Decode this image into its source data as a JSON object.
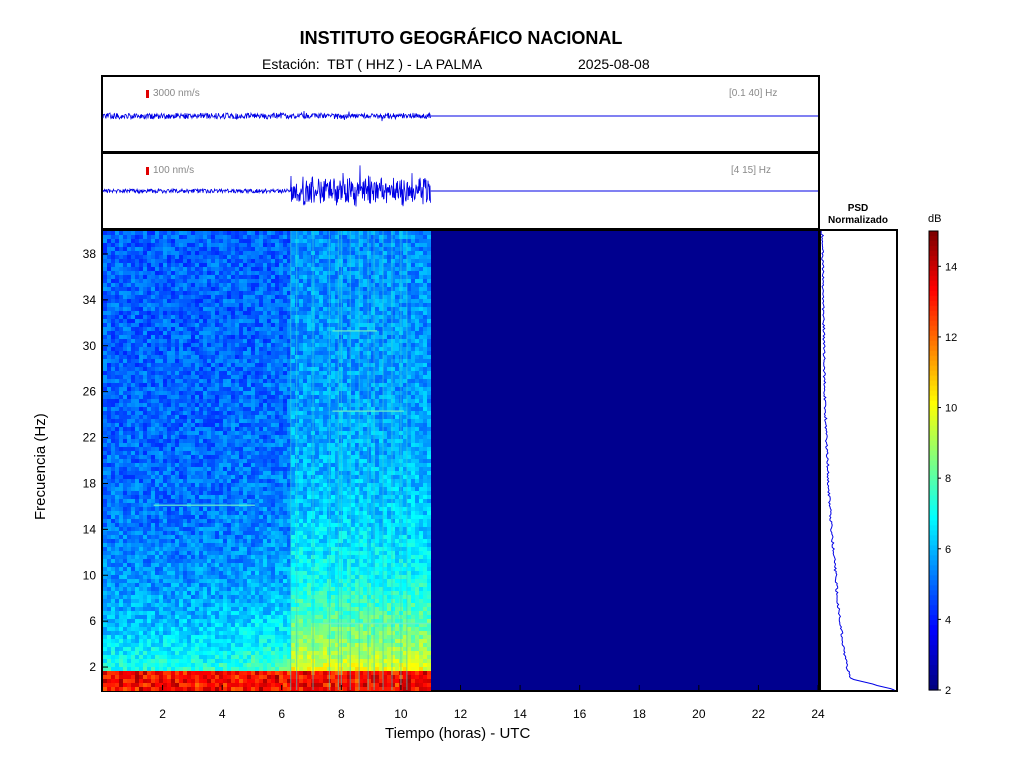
{
  "header": {
    "title": "INSTITUTO GEOGRÁFICO NACIONAL",
    "station": "Estación:  TBT ( HHZ ) - LA PALMA",
    "date": "2025-08-08"
  },
  "trace_top": {
    "scale": "3000 nm/s",
    "band": "[0.1 40] Hz"
  },
  "trace_bottom": {
    "scale": "100 nm/s",
    "band": "[4 15] Hz"
  },
  "psd": {
    "title_line1": "PSD",
    "title_line2": "Normalizado"
  },
  "colorbar": {
    "unit": "dB",
    "ticks": [
      2,
      4,
      6,
      8,
      10,
      12,
      14
    ],
    "range": [
      2,
      15
    ]
  },
  "colors": {
    "trace": "#0000e6",
    "background_spectrogram": "#00008f",
    "scale_bar": "#e00000"
  },
  "chart_data": {
    "type": "heatmap",
    "xlabel": "Tiempo (horas) - UTC",
    "ylabel": "Frecuencia  (Hz)",
    "xlim": [
      0,
      24
    ],
    "ylim": [
      0,
      40
    ],
    "xticks": [
      2,
      4,
      6,
      8,
      10,
      12,
      14,
      16,
      18,
      20,
      22,
      24
    ],
    "yticks": [
      2,
      6,
      10,
      14,
      18,
      22,
      26,
      30,
      34,
      38
    ],
    "data_end_hour": 11,
    "tremor_onset_hour": 6.3,
    "psd_profile": {
      "frequency": [
        0,
        1,
        2,
        4,
        6,
        8,
        10,
        12,
        14,
        16,
        18,
        20,
        22,
        24,
        26,
        28,
        30,
        32,
        34,
        36,
        38,
        40
      ],
      "normalized": [
        1.0,
        0.4,
        0.35,
        0.3,
        0.26,
        0.22,
        0.2,
        0.17,
        0.14,
        0.12,
        0.1,
        0.09,
        0.07,
        0.06,
        0.05,
        0.045,
        0.04,
        0.035,
        0.03,
        0.025,
        0.02,
        0.015
      ]
    }
  }
}
